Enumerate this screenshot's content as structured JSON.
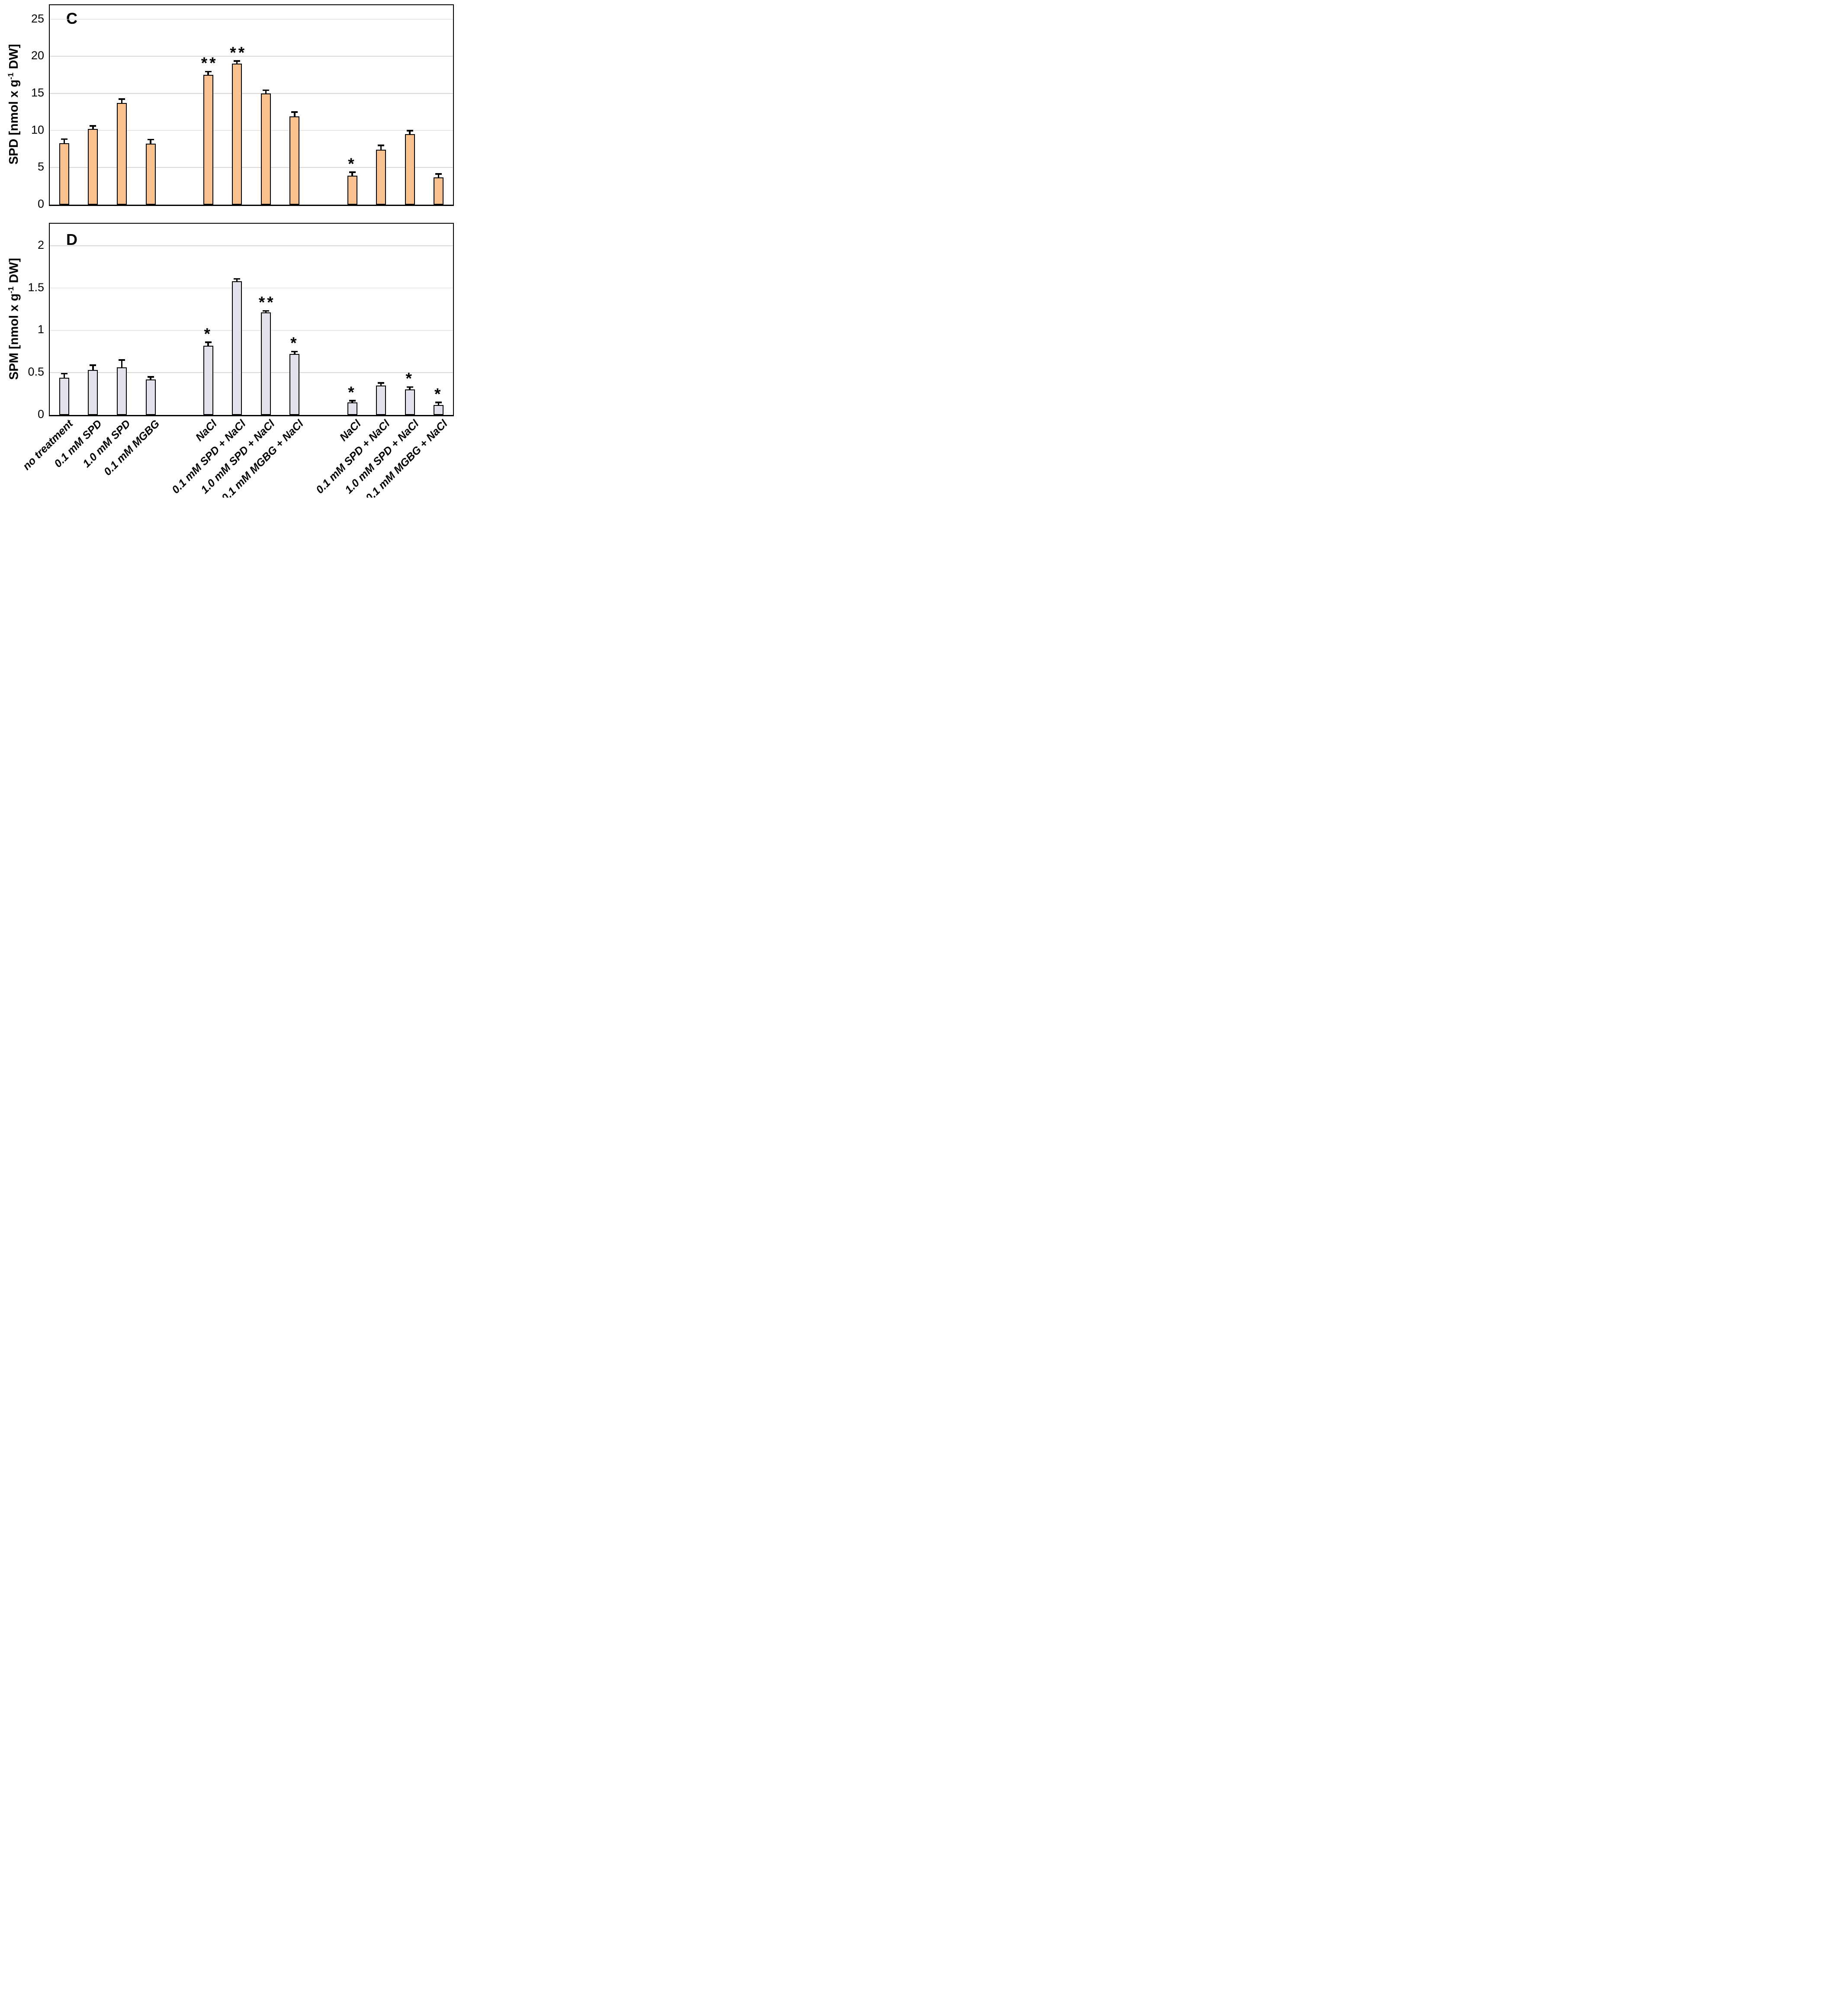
{
  "chart_data": [
    {
      "type": "bar",
      "panel_label": "C",
      "ylabel": "SPD [nmol x g-1 DW]",
      "ylabel_prefix": "SPD [nmol x g",
      "ylabel_sup": "-1",
      "ylabel_suffix": " DW]",
      "ylim": [
        0,
        26.9
      ],
      "yticks": [
        0,
        5,
        10,
        15,
        20,
        25
      ],
      "grid": true,
      "legend": "none",
      "categories": [
        "no treatment",
        "0.1 mM SPD",
        "1.0 mM SPD",
        "0.1 mM MGBG",
        "NaCl",
        "0.1 mM SPD + NaCl",
        "1.0 mM SPD + NaCl",
        "0.1 mM MGBG + NaCl",
        "NaCl",
        "0.1 mM SPD + NaCl",
        "1.0 mM SPD + NaCl",
        "0.1 mM MGBG + NaCl"
      ],
      "values": [
        8.3,
        10.2,
        13.7,
        8.2,
        17.5,
        19.0,
        15.0,
        11.9,
        3.9,
        7.4,
        9.5,
        3.7
      ],
      "errors": [
        0.55,
        0.45,
        0.55,
        0.6,
        0.45,
        0.4,
        0.45,
        0.6,
        0.5,
        0.6,
        0.5,
        0.45
      ],
      "significance": [
        "",
        "",
        "",
        "",
        "**",
        "**",
        "",
        "",
        "*",
        "",
        "",
        ""
      ],
      "group_gaps_after": [
        3,
        7
      ],
      "bar_fill": "#F9C18D",
      "bar_border": "#000000",
      "gridline_color": "#D9D9D9"
    },
    {
      "type": "bar",
      "panel_label": "D",
      "ylabel": "SPM [nmol x g-1 DW]",
      "ylabel_prefix": "SPM [nmol x g",
      "ylabel_sup": "-1",
      "ylabel_suffix": " DW]",
      "ylim": [
        0,
        2.26
      ],
      "yticks": [
        0,
        0.5,
        1,
        1.5,
        2
      ],
      "grid": true,
      "legend": "none",
      "categories": [
        "no treatment",
        "0.1 mM SPD",
        "1.0 mM SPD",
        "0.1 mM MGBG",
        "NaCl",
        "0.1 mM SPD + NaCl",
        "1.0 mM SPD + NaCl",
        "0.1 mM MGBG + NaCl",
        "NaCl",
        "0.1 mM SPD + NaCl",
        "1.0 mM SPD + NaCl",
        "0.1 mM MGBG + NaCl"
      ],
      "values": [
        0.44,
        0.53,
        0.56,
        0.42,
        0.82,
        1.58,
        1.21,
        0.72,
        0.15,
        0.35,
        0.3,
        0.12
      ],
      "errors": [
        0.05,
        0.06,
        0.09,
        0.03,
        0.04,
        0.03,
        0.02,
        0.03,
        0.02,
        0.03,
        0.03,
        0.03
      ],
      "significance": [
        "",
        "",
        "",
        "",
        "*",
        "",
        "**",
        "*",
        "*",
        "",
        "*",
        "*"
      ],
      "group_gaps_after": [
        3,
        7
      ],
      "bar_fill": "#E4E0EC",
      "bar_border": "#000000",
      "gridline_color": "#D9D9D9"
    }
  ]
}
